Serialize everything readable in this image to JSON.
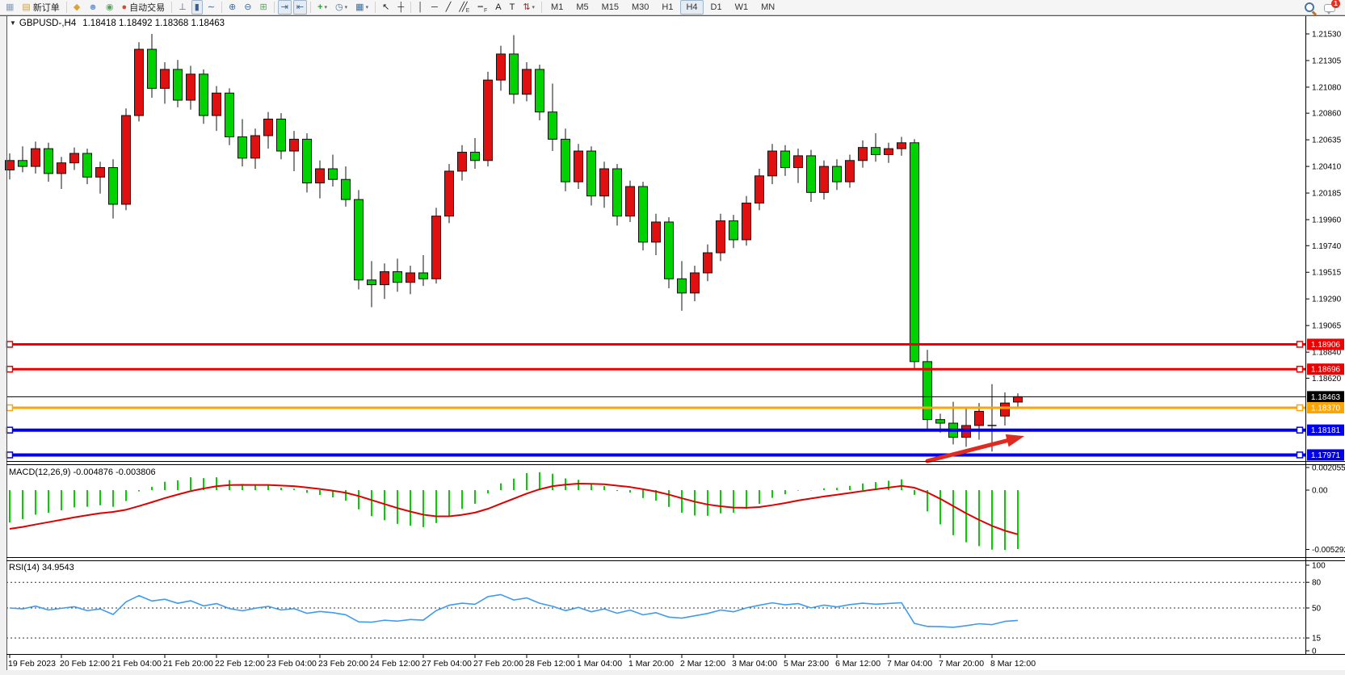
{
  "window": {
    "symbol_period": "GBPUSD-,H4",
    "quote": "1.18418 1.18492 1.18368 1.18463",
    "collapse_glyph": "▼"
  },
  "toolbar": {
    "buttons": [
      {
        "name": "chart-window-icon",
        "glyph": "▦",
        "color": "#8aa0b8"
      },
      {
        "name": "new-order-button",
        "glyph": "▤",
        "color": "#c8a24a",
        "label": "新订单"
      },
      {
        "sep": true
      },
      {
        "name": "gold-icon",
        "glyph": "◆",
        "color": "#d9a43b"
      },
      {
        "name": "community-icon",
        "glyph": "☻",
        "color": "#6f9fd8"
      },
      {
        "name": "signals-icon",
        "glyph": "◉",
        "color": "#57a85a"
      },
      {
        "name": "autotrading-button",
        "glyph": "●",
        "color": "#cf4a3c",
        "label": "自动交易"
      },
      {
        "sep": true
      },
      {
        "name": "bar-chart-button",
        "glyph": "⊥",
        "color": "#3b5f8a"
      },
      {
        "name": "candlestick-button",
        "glyph": "▮",
        "color": "#3b5f8a",
        "active": true
      },
      {
        "name": "line-chart-button",
        "glyph": "∼",
        "color": "#3b5f8a"
      },
      {
        "sep": true
      },
      {
        "name": "zoom-in-button",
        "glyph": "⊕",
        "color": "#3b6ea5"
      },
      {
        "name": "zoom-out-button",
        "glyph": "⊖",
        "color": "#3b6ea5"
      },
      {
        "name": "tile-windows-button",
        "glyph": "⊞",
        "color": "#57a85a"
      },
      {
        "sep": true
      },
      {
        "name": "auto-scroll-button",
        "glyph": "⇥",
        "color": "#3b5f8a",
        "active": true
      },
      {
        "name": "chart-shift-button",
        "glyph": "⇤",
        "color": "#3b5f8a",
        "active": true
      },
      {
        "sep": true
      },
      {
        "name": "indicators-button",
        "glyph": "+",
        "color": "#2e9e3a",
        "caret": true
      },
      {
        "name": "periods-button",
        "glyph": "◷",
        "color": "#3b6ea5",
        "caret": true
      },
      {
        "name": "templates-button",
        "glyph": "▦",
        "color": "#3b6ea5",
        "caret": true
      },
      {
        "sep": true
      },
      {
        "name": "cursor-button",
        "glyph": "↖",
        "color": "#222222"
      },
      {
        "name": "crosshair-button",
        "glyph": "┼",
        "color": "#222222"
      },
      {
        "sep": true
      },
      {
        "name": "vertical-line-button",
        "glyph": "│",
        "color": "#222222"
      },
      {
        "name": "horizontal-line-button",
        "glyph": "─",
        "color": "#222222"
      },
      {
        "name": "trendline-button",
        "glyph": "╱",
        "color": "#222222"
      },
      {
        "name": "equidistant-channel-button",
        "glyph": "╱╱",
        "sub": "E",
        "color": "#222222"
      },
      {
        "name": "fibonacci-button",
        "glyph": "┉",
        "sub": "F",
        "color": "#222222"
      },
      {
        "name": "text-button",
        "glyph": "A",
        "color": "#222222"
      },
      {
        "name": "text-label-button",
        "glyph": "T",
        "color": "#222222"
      },
      {
        "name": "arrows-button",
        "glyph": "⇅",
        "color": "#8a2e2e",
        "caret": true
      },
      {
        "sep": true
      }
    ],
    "timeframes": [
      {
        "label": "M1"
      },
      {
        "label": "M5"
      },
      {
        "label": "M15"
      },
      {
        "label": "M30"
      },
      {
        "label": "H1"
      },
      {
        "label": "H4",
        "active": true
      },
      {
        "label": "D1"
      },
      {
        "label": "W1"
      },
      {
        "label": "MN"
      }
    ],
    "notification_count": "1"
  },
  "indicators": {
    "macd": {
      "label_full": "MACD(12,26,9) -0.004876 -0.003806",
      "name": "MACD",
      "fast": 12,
      "slow": 26,
      "signal": 9,
      "value_main": "-0.004876",
      "value_signal": "-0.003806",
      "axis_labels": [
        {
          "text": "0.002055",
          "value": 0.002055
        },
        {
          "text": "0.00",
          "value": 0
        },
        {
          "text": "-0.005292",
          "value": -0.005292
        }
      ]
    },
    "rsi": {
      "label_full": "RSI(14) 34.9543",
      "name": "RSI",
      "period": 14,
      "value": "34.9543",
      "axis_labels": [
        {
          "text": "100",
          "value": 100,
          "dashed": false
        },
        {
          "text": "80",
          "value": 80,
          "dashed": true
        },
        {
          "text": "50",
          "value": 50,
          "dashed": true
        },
        {
          "text": "15",
          "value": 15,
          "dashed": true
        },
        {
          "text": "0",
          "value": 0,
          "dashed": false
        }
      ]
    }
  },
  "price_axis": {
    "labels": [
      "1.21530",
      "1.21305",
      "1.21080",
      "1.20860",
      "1.20635",
      "1.20410",
      "1.20185",
      "1.19960",
      "1.19740",
      "1.19515",
      "1.19290",
      "1.19065",
      "1.18840",
      "1.18620"
    ],
    "badges": [
      {
        "text": "1.18906",
        "color": "#ee0000"
      },
      {
        "text": "1.18696",
        "color": "#ee0000"
      },
      {
        "text": "1.18463",
        "color": "#000000"
      },
      {
        "text": "1.18370",
        "color": "#ffa500"
      },
      {
        "text": "1.18181",
        "color": "#0000ee"
      },
      {
        "text": "1.17971",
        "color": "#0000ee"
      }
    ]
  },
  "time_axis": {
    "labels": [
      "19 Feb 2023",
      "20 Feb 12:00",
      "21 Feb 04:00",
      "21 Feb 20:00",
      "22 Feb 12:00",
      "23 Feb 04:00",
      "23 Feb 20:00",
      "24 Feb 12:00",
      "27 Feb 04:00",
      "27 Feb 20:00",
      "28 Feb 12:00",
      "1 Mar 04:00",
      "1 Mar 20:00",
      "2 Mar 12:00",
      "3 Mar 04:00",
      "5 Mar 23:00",
      "6 Mar 12:00",
      "7 Mar 04:00",
      "7 Mar 20:00",
      "8 Mar 12:00"
    ]
  },
  "colors": {
    "candle_up": "#e01010",
    "candle_down": "#00d200",
    "candle_outline": "#111111",
    "macd_hist": "#00d200",
    "macd_signal": "#e00000",
    "rsi_line": "#3e9bf0",
    "bid_line": "#000000",
    "arrow": "#e02a20"
  },
  "chart_data": {
    "type": "candlestick",
    "symbol": "GBPUSD",
    "timeframe": "H4",
    "ohlc_note": "open,high,low,close per 4h bar, 19 Feb - 8 Mar 2023",
    "candles": [
      [
        1.2038,
        1.2052,
        1.203,
        1.2046
      ],
      [
        1.2046,
        1.2058,
        1.2036,
        1.2041
      ],
      [
        1.2041,
        1.2062,
        1.2035,
        1.2056
      ],
      [
        1.2056,
        1.2061,
        1.2028,
        1.2035
      ],
      [
        1.2035,
        1.2049,
        1.2022,
        1.2044
      ],
      [
        1.2044,
        1.2057,
        1.2038,
        1.2052
      ],
      [
        1.2052,
        1.2056,
        1.2026,
        1.2032
      ],
      [
        1.2032,
        1.2045,
        1.2018,
        1.204
      ],
      [
        1.204,
        1.2047,
        1.1997,
        1.2009
      ],
      [
        1.2009,
        1.209,
        1.2004,
        1.2084
      ],
      [
        1.2084,
        1.2146,
        1.2079,
        1.214
      ],
      [
        1.214,
        1.2153,
        1.2099,
        1.2107
      ],
      [
        1.2107,
        1.2129,
        1.2094,
        1.2123
      ],
      [
        1.2123,
        1.2131,
        1.2091,
        1.2097
      ],
      [
        1.2097,
        1.2126,
        1.2089,
        1.2119
      ],
      [
        1.2119,
        1.2123,
        1.2077,
        1.2084
      ],
      [
        1.2084,
        1.2109,
        1.2071,
        1.2103
      ],
      [
        1.2103,
        1.2107,
        1.2059,
        1.2066
      ],
      [
        1.2066,
        1.2081,
        1.2041,
        1.2048
      ],
      [
        1.2048,
        1.2073,
        1.2039,
        1.2067
      ],
      [
        1.2067,
        1.2087,
        1.2056,
        1.2081
      ],
      [
        1.2081,
        1.2086,
        1.2047,
        1.2054
      ],
      [
        1.2054,
        1.2071,
        1.2037,
        1.2064
      ],
      [
        1.2064,
        1.2069,
        1.2019,
        1.2027
      ],
      [
        1.2027,
        1.2046,
        1.2014,
        1.2039
      ],
      [
        1.2039,
        1.2051,
        1.2024,
        1.203
      ],
      [
        1.203,
        1.2041,
        1.2007,
        1.2013
      ],
      [
        1.2013,
        1.2021,
        1.1937,
        1.1945
      ],
      [
        1.1945,
        1.1961,
        1.1922,
        1.1941
      ],
      [
        1.1941,
        1.1959,
        1.1929,
        1.1952
      ],
      [
        1.1952,
        1.1963,
        1.1935,
        1.1943
      ],
      [
        1.1943,
        1.1957,
        1.1933,
        1.1951
      ],
      [
        1.1951,
        1.1966,
        1.194,
        1.1946
      ],
      [
        1.1946,
        1.2006,
        1.1942,
        1.1999
      ],
      [
        1.1999,
        1.2043,
        1.1993,
        1.2037
      ],
      [
        1.2037,
        1.2059,
        1.2029,
        1.2053
      ],
      [
        1.2053,
        1.2065,
        1.2039,
        1.2046
      ],
      [
        1.2046,
        1.2121,
        1.2041,
        1.2114
      ],
      [
        1.2114,
        1.2143,
        1.2105,
        1.2136
      ],
      [
        1.2136,
        1.2152,
        1.2094,
        1.2102
      ],
      [
        1.2102,
        1.2129,
        1.2096,
        1.2123
      ],
      [
        1.2123,
        1.2127,
        1.208,
        1.2087
      ],
      [
        1.2087,
        1.2111,
        1.2054,
        1.2064
      ],
      [
        1.2064,
        1.2073,
        1.202,
        1.2028
      ],
      [
        1.2028,
        1.206,
        1.2022,
        1.2054
      ],
      [
        1.2054,
        1.2058,
        1.2008,
        1.2016
      ],
      [
        1.2016,
        1.2045,
        1.2006,
        1.2039
      ],
      [
        1.2039,
        1.2043,
        1.1991,
        1.1999
      ],
      [
        1.1999,
        1.2029,
        1.1994,
        1.2024
      ],
      [
        1.2024,
        1.2028,
        1.197,
        1.1977
      ],
      [
        1.1977,
        1.2001,
        1.1966,
        1.1994
      ],
      [
        1.1994,
        1.1998,
        1.1938,
        1.1946
      ],
      [
        1.1946,
        1.1961,
        1.1919,
        1.1934
      ],
      [
        1.1934,
        1.1957,
        1.1927,
        1.1951
      ],
      [
        1.1951,
        1.1975,
        1.1944,
        1.1968
      ],
      [
        1.1968,
        1.2001,
        1.1961,
        1.1995
      ],
      [
        1.1995,
        1.2,
        1.1972,
        1.1979
      ],
      [
        1.1979,
        1.2016,
        1.1974,
        1.201
      ],
      [
        1.201,
        1.2039,
        1.2004,
        1.2033
      ],
      [
        1.2033,
        1.206,
        1.2026,
        1.2054
      ],
      [
        1.2054,
        1.2059,
        1.2033,
        1.204
      ],
      [
        1.204,
        1.2056,
        1.2027,
        1.205
      ],
      [
        1.205,
        1.2055,
        1.2011,
        1.2019
      ],
      [
        1.2019,
        1.2046,
        1.2013,
        1.2041
      ],
      [
        1.2041,
        1.2047,
        1.2021,
        1.2028
      ],
      [
        1.2028,
        1.2051,
        1.2023,
        1.2046
      ],
      [
        1.2046,
        1.2063,
        1.204,
        1.2057
      ],
      [
        1.2057,
        1.2069,
        1.2045,
        1.2051
      ],
      [
        1.2051,
        1.2061,
        1.2044,
        1.2056
      ],
      [
        1.2056,
        1.2066,
        1.205,
        1.2061
      ],
      [
        1.2061,
        1.2064,
        1.1869,
        1.1876
      ],
      [
        1.1876,
        1.1886,
        1.1819,
        1.1827
      ],
      [
        1.1827,
        1.1832,
        1.1816,
        1.1824
      ],
      [
        1.1824,
        1.1842,
        1.1806,
        1.1812
      ],
      [
        1.1812,
        1.1836,
        1.1804,
        1.1822
      ],
      [
        1.1822,
        1.1841,
        1.181,
        1.1834
      ],
      [
        1.1822,
        1.1857,
        1.18,
        1.1822
      ],
      [
        1.183,
        1.185,
        1.1822,
        1.1841
      ],
      [
        1.18418,
        1.18492,
        1.18368,
        1.18463
      ]
    ],
    "horizontal_lines": [
      {
        "price": 1.18906,
        "color": "#ee0000",
        "width": 3,
        "handles": true
      },
      {
        "price": 1.18696,
        "color": "#ee0000",
        "width": 3,
        "handles": true
      },
      {
        "price": 1.18463,
        "color": "#000000",
        "width": 1,
        "handles": false
      },
      {
        "price": 1.1837,
        "color": "#ffa500",
        "width": 3,
        "handles": true
      },
      {
        "price": 1.18181,
        "color": "#0000ee",
        "width": 4,
        "handles": true
      },
      {
        "price": 1.17971,
        "color": "#0000ee",
        "width": 4,
        "handles": true
      }
    ],
    "arrow_annotation": {
      "from_bar": 71,
      "from_price": 1.1792,
      "to_bar": 78.5,
      "to_price": 1.1813
    }
  }
}
